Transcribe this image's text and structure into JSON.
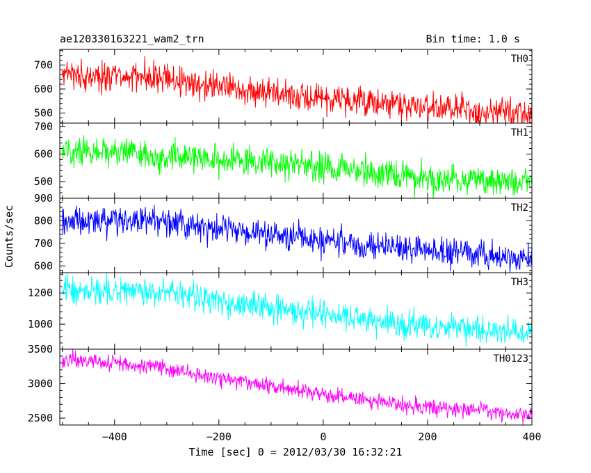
{
  "chart_data": {
    "type": "line",
    "title": "ae120330163221_wam2_trn",
    "subtitle": "Bin time: 1.0 s",
    "xlabel": "Time [sec] 0 = 2012/03/30 16:32:21",
    "ylabel": "Counts/sec",
    "xlim": [
      -505,
      400
    ],
    "x_ticks": [
      -400,
      -200,
      0,
      200,
      400
    ],
    "x_tick_labels": [
      "−400",
      "−200",
      "0",
      "200",
      "400"
    ],
    "x_range": [
      -500,
      400
    ],
    "grid": false,
    "panels": [
      {
        "name": "TH0",
        "color": "#ff0000",
        "ylim": [
          458,
          765
        ],
        "y_ticks": [
          500,
          600,
          700
        ],
        "y_tick_labels": [
          "500",
          "600",
          "700"
        ],
        "trend": [
          [
            -500,
            665
          ],
          [
            -300,
            640
          ],
          [
            0,
            560
          ],
          [
            100,
            545
          ],
          [
            250,
            510
          ],
          [
            400,
            495
          ]
        ],
        "noise": 30
      },
      {
        "name": "TH1",
        "color": "#00ff00",
        "ylim": [
          440,
          712
        ],
        "y_ticks": [
          500,
          600,
          700
        ],
        "y_tick_labels": [
          "500",
          "600",
          "700"
        ],
        "trend": [
          [
            -500,
            615
          ],
          [
            -300,
            595
          ],
          [
            0,
            555
          ],
          [
            200,
            510
          ],
          [
            400,
            495
          ]
        ],
        "noise": 28
      },
      {
        "name": "TH2",
        "color": "#0000ff",
        "ylim": [
          570,
          900
        ],
        "y_ticks": [
          600,
          700,
          800,
          900
        ],
        "y_tick_labels": [
          "600",
          "700",
          "800",
          "900"
        ],
        "trend": [
          [
            -500,
            810
          ],
          [
            -300,
            790
          ],
          [
            0,
            715
          ],
          [
            200,
            665
          ],
          [
            400,
            630
          ]
        ],
        "noise": 32
      },
      {
        "name": "TH3",
        "color": "#00ffff",
        "ylim": [
          840,
          1330
        ],
        "y_ticks": [
          1000,
          1200
        ],
        "y_tick_labels": [
          "1000",
          "1200"
        ],
        "trend": [
          [
            -500,
            1225
          ],
          [
            -300,
            1200
          ],
          [
            0,
            1060
          ],
          [
            200,
            990
          ],
          [
            400,
            940
          ]
        ],
        "noise": 45
      },
      {
        "name": "TH0123",
        "color": "#ff00ff",
        "ylim": [
          2400,
          3500
        ],
        "y_ticks": [
          2500,
          3000,
          3500
        ],
        "y_tick_labels": [
          "2500",
          "3000",
          "3500"
        ],
        "trend": [
          [
            -500,
            3370
          ],
          [
            -300,
            3230
          ],
          [
            -200,
            3080
          ],
          [
            0,
            2850
          ],
          [
            200,
            2660
          ],
          [
            400,
            2540
          ]
        ],
        "noise": 60
      }
    ]
  }
}
